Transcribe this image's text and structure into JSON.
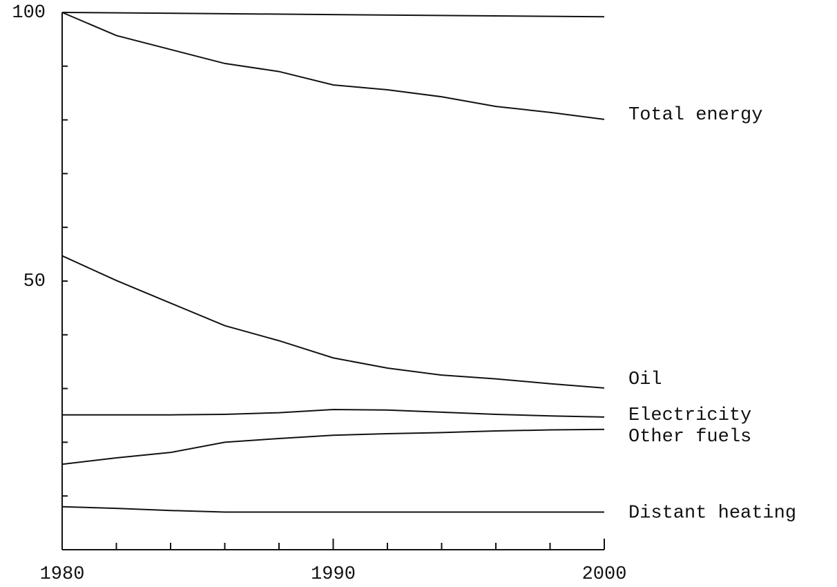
{
  "chart_data": {
    "type": "line",
    "xlim": [
      1980,
      2000
    ],
    "xticks": [
      1980,
      1990,
      2000
    ],
    "minor_xticks": [
      1982,
      1984,
      1986,
      1988,
      1992,
      1994,
      1996,
      1998
    ],
    "ylim": [
      0,
      100
    ],
    "yticks": [
      50,
      100
    ],
    "minor_yticks": [
      10,
      20,
      30,
      40,
      60,
      70,
      80,
      90
    ],
    "color": "#111111",
    "series": [
      {
        "x": [
          1980,
          2000
        ],
        "values": [
          100,
          99.2
        ]
      },
      {
        "name": "Total energy",
        "x": [
          1980,
          1982,
          1984,
          1986,
          1988,
          1990,
          1992,
          1994,
          1996,
          1998,
          2000
        ],
        "values": [
          100,
          95.7,
          93.1,
          90.5,
          89.0,
          86.5,
          85.6,
          84.3,
          82.5,
          81.4,
          80.1
        ]
      },
      {
        "name": "Oil",
        "x": [
          1980,
          1982,
          1984,
          1986,
          1988,
          1990,
          1992,
          1994,
          1996,
          1998,
          2000
        ],
        "values": [
          54.7,
          50.1,
          45.9,
          41.7,
          38.9,
          35.7,
          33.8,
          32.5,
          31.8,
          30.9,
          30.1
        ]
      },
      {
        "name": "Electricity",
        "x": [
          1980,
          1982,
          1984,
          1986,
          1988,
          1990,
          1992,
          1994,
          1996,
          1998,
          2000
        ],
        "values": [
          25.1,
          25.1,
          25.1,
          25.2,
          25.5,
          26.1,
          26.0,
          25.6,
          25.2,
          24.9,
          24.7
        ]
      },
      {
        "name": "Other fuels",
        "x": [
          1980,
          1982,
          1984,
          1986,
          1988,
          1990,
          1992,
          1994,
          1996,
          1998,
          2000
        ],
        "values": [
          15.9,
          17.1,
          18.1,
          20.0,
          20.7,
          21.3,
          21.6,
          21.8,
          22.1,
          22.3,
          22.4
        ]
      },
      {
        "name": "Distant heating",
        "x": [
          1980,
          1982,
          1984,
          1986,
          1988,
          1990,
          1992,
          1994,
          1996,
          1998,
          2000
        ],
        "values": [
          8.0,
          7.7,
          7.3,
          7.0,
          7.0,
          7.0,
          7.0,
          7.0,
          7.0,
          7.0,
          7.0
        ]
      }
    ]
  }
}
